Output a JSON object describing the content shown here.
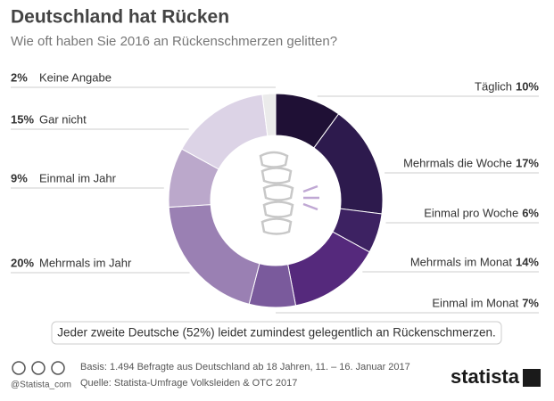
{
  "chart_data": {
    "type": "donut",
    "title": "Deutschland hat Rücken",
    "subtitle": "Wie oft haben Sie 2016 an Rückenschmerzen gelitten?",
    "categories": [
      "Täglich",
      "Mehrmals die Woche",
      "Einmal pro Woche",
      "Mehrmals im Monat",
      "Einmal im Monat",
      "Mehrmals im Jahr",
      "Einmal im Jahr",
      "Gar nicht",
      "Keine Angabe"
    ],
    "values": [
      10,
      17,
      6,
      14,
      7,
      20,
      9,
      15,
      2
    ],
    "value_labels": [
      "10%",
      "17%",
      "6%",
      "14%",
      "7%",
      "20%",
      "9%",
      "15%",
      "2%"
    ],
    "colors": [
      "#1f1035",
      "#2d1a4d",
      "#3d2262",
      "#55297c",
      "#7a5a9c",
      "#9a80b3",
      "#bba8cb",
      "#dcd3e6",
      "#ebebeb"
    ],
    "annotation": "Jeder zweite Deutsche (52%) leidet zumindest gelegentlich an Rückenschmerzen.",
    "footer": {
      "handle": "@Statista_com",
      "basis": "Basis: 1.494 Befragte aus Deutschland ab 18 Jahren, 11. – 16. Januar 2017",
      "source": "Quelle: Statista-Umfrage Volksleiden & OTC 2017",
      "brand": "statista"
    }
  }
}
